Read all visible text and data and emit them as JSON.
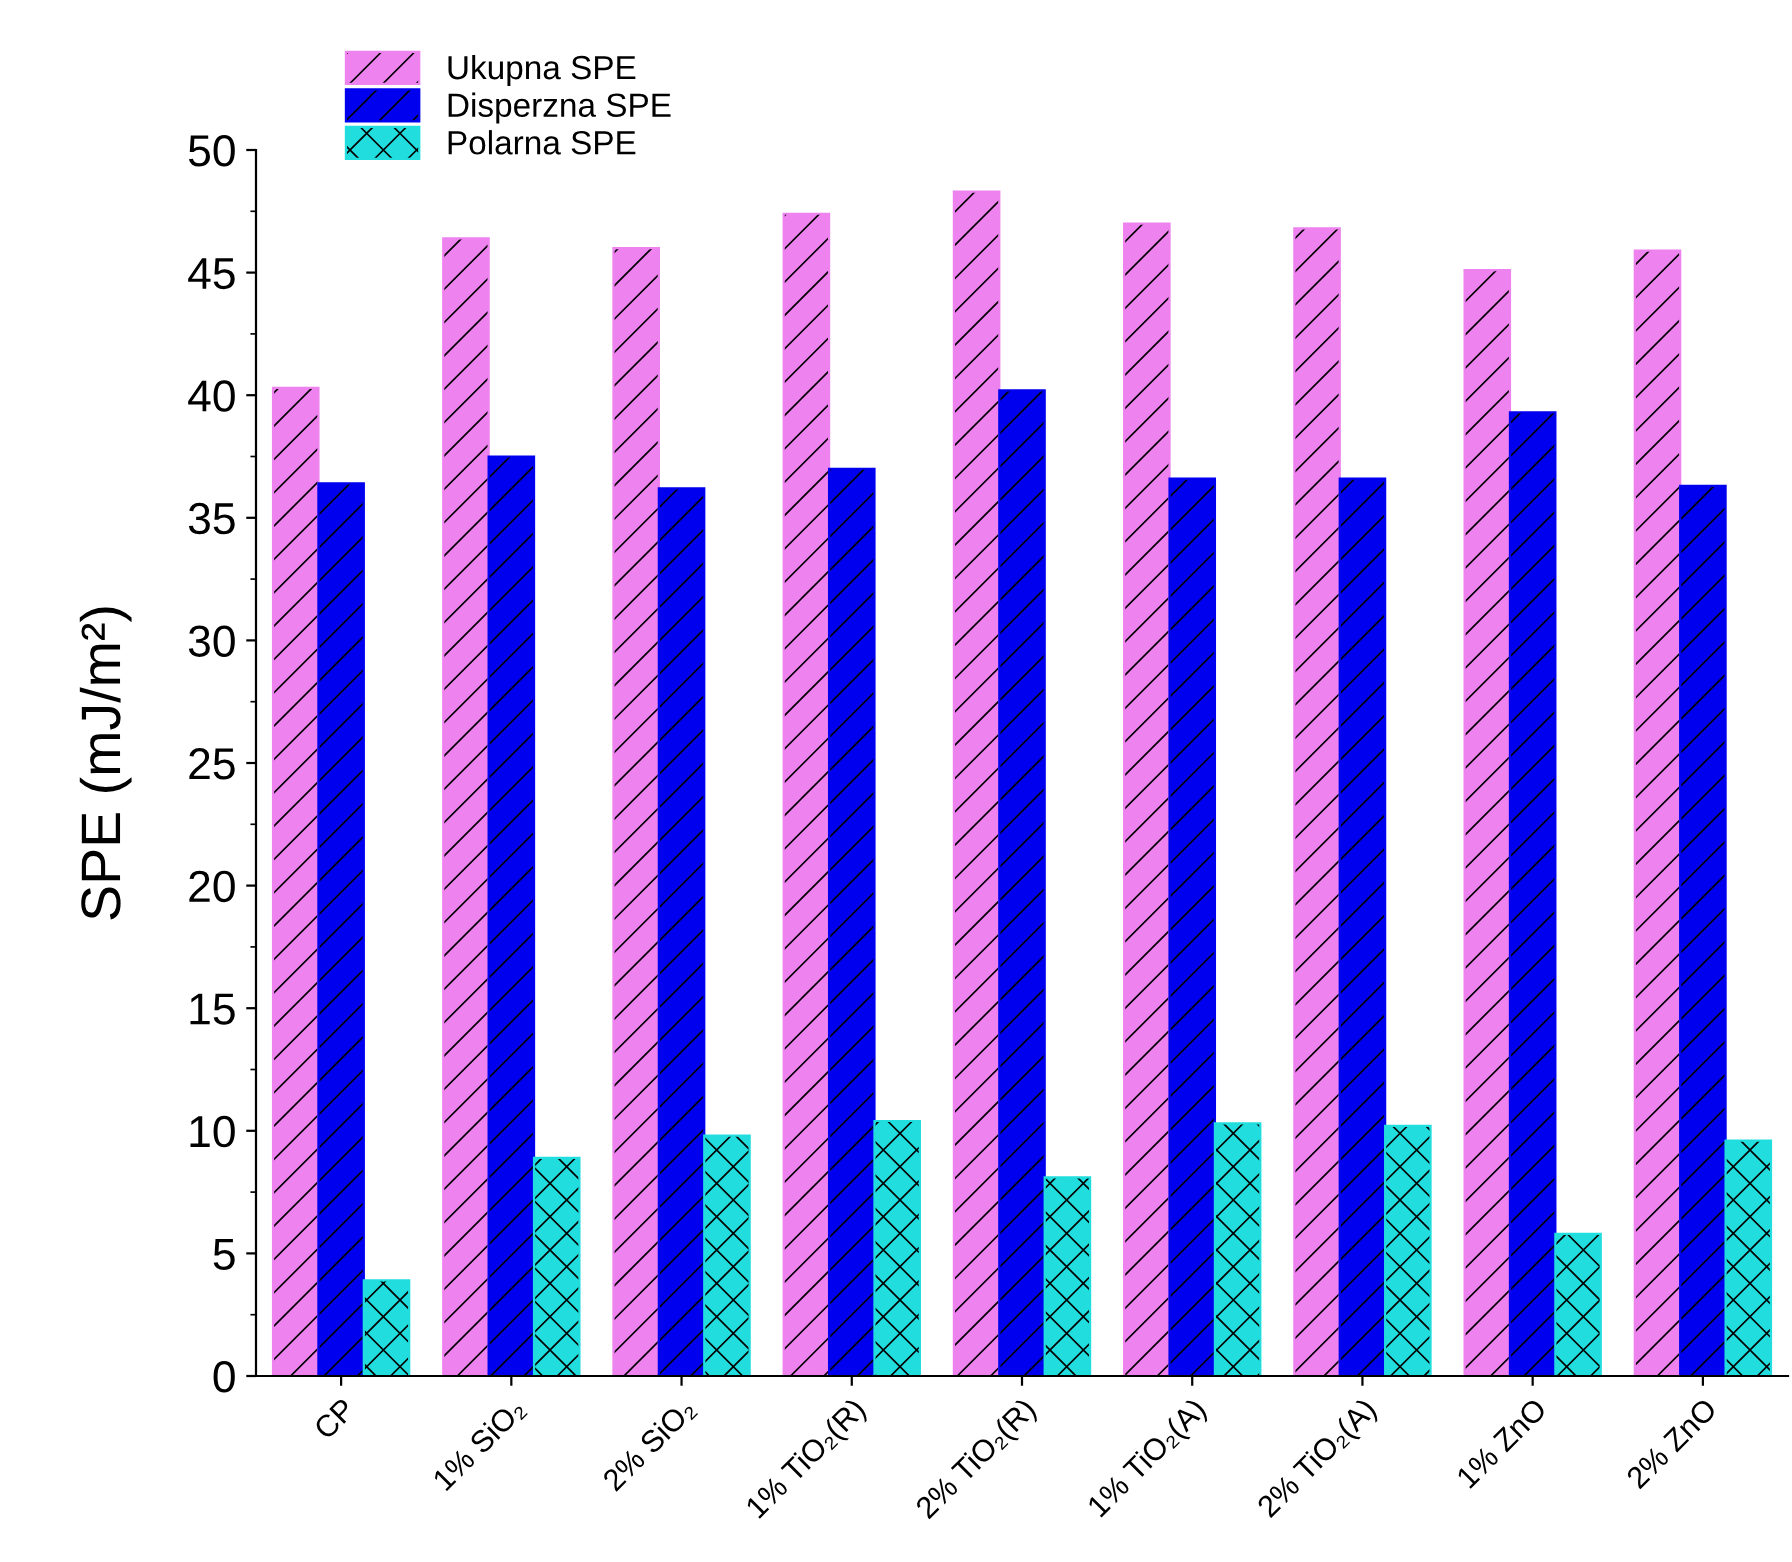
{
  "chart_data": {
    "type": "bar",
    "ylabel": "SPE (mJ/m²)",
    "categories": [
      "CP",
      "1% SiO₂",
      "2% SiO₂",
      "1% TiO₂(R)",
      "2% TiO₂(R)",
      "1% TiO₂(A)",
      "2% TiO₂(A)",
      "1% ZnO",
      "2% ZnO"
    ],
    "series": [
      {
        "name": "Ukupna SPE",
        "color": "#ee82ee",
        "values": [
          40.3,
          46.4,
          46.0,
          47.4,
          48.3,
          47.0,
          46.8,
          45.1,
          45.9
        ]
      },
      {
        "name": "Disperzna SPE",
        "color": "#0000ee",
        "values": [
          36.4,
          37.5,
          36.2,
          37.0,
          40.2,
          36.6,
          36.6,
          39.3,
          36.3
        ]
      },
      {
        "name": "Polarna SPE",
        "color": "#22dddd",
        "values": [
          3.9,
          8.9,
          9.8,
          10.4,
          8.1,
          10.3,
          10.2,
          5.8,
          9.6
        ]
      }
    ],
    "ylim": [
      0,
      50
    ],
    "yticks": [
      0,
      5,
      10,
      15,
      20,
      25,
      30,
      35,
      40,
      45,
      50
    ],
    "grid": false,
    "legend": "top left"
  }
}
